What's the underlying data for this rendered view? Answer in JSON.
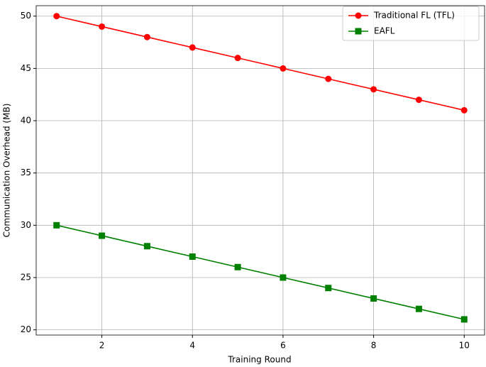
{
  "chart_data": {
    "type": "line",
    "xlabel": "Training Round",
    "ylabel": "Communication Overhead (MB)",
    "x": [
      1,
      2,
      3,
      4,
      5,
      6,
      7,
      8,
      9,
      10
    ],
    "series": [
      {
        "name": "Traditional FL (TFL)",
        "color": "#ff0000",
        "marker": "circle",
        "values": [
          50,
          49,
          48,
          47,
          46,
          45,
          44,
          43,
          42,
          41
        ]
      },
      {
        "name": "EAFL",
        "color": "#008000",
        "marker": "square",
        "values": [
          30,
          29,
          28,
          27,
          26,
          25,
          24,
          23,
          22,
          21
        ]
      }
    ],
    "xlim": [
      0.55,
      10.45
    ],
    "xticks": [
      2,
      4,
      6,
      8,
      10
    ],
    "ylim": [
      19.5,
      51
    ],
    "yticks": [
      20,
      25,
      30,
      35,
      40,
      45,
      50
    ],
    "grid": true,
    "legend": "upper right"
  }
}
